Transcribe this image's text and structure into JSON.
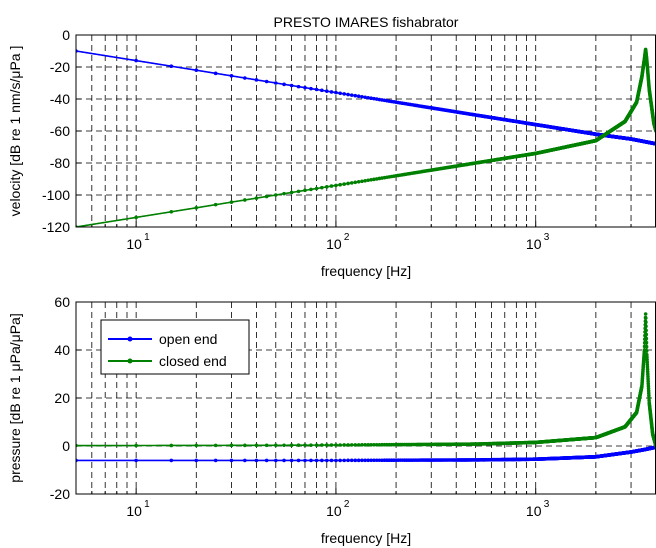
{
  "figure_title": "PRESTO IMARES fishabrator",
  "chart_data": [
    {
      "type": "line",
      "title": "PRESTO IMARES fishabrator",
      "xlabel": "frequency  [Hz]",
      "ylabel": "velocity [dB re 1 nm/s/μPa ]",
      "xscale": "log",
      "xlim": [
        5,
        4000
      ],
      "ylim": [
        -120,
        0
      ],
      "yticks": [
        0,
        -20,
        -40,
        -60,
        -80,
        -100,
        -120
      ],
      "xticks": [
        10,
        100,
        1000
      ],
      "grid": true,
      "series": [
        {
          "key": "open",
          "color": "#0000ff",
          "x": [
            5,
            10,
            20,
            50,
            100,
            200,
            500,
            1000,
            2000,
            3000,
            4000
          ],
          "y": [
            -10,
            -16,
            -22,
            -30,
            -36,
            -42,
            -50,
            -56,
            -62,
            -65,
            -68
          ]
        },
        {
          "key": "closed",
          "color": "#008000",
          "x": [
            5,
            10,
            20,
            50,
            100,
            200,
            500,
            1000,
            2000,
            2800,
            3200,
            3400,
            3500,
            3550,
            3600,
            3700,
            3900,
            4000
          ],
          "y": [
            -120,
            -114,
            -108,
            -100,
            -94,
            -88,
            -80,
            -74,
            -66,
            -54,
            -42,
            -26,
            -15,
            -9,
            -16,
            -34,
            -55,
            -60
          ]
        }
      ]
    },
    {
      "type": "line",
      "xlabel": "frequency  [Hz]",
      "ylabel": "pressure  [dB re 1 μPa/μPa]",
      "xscale": "log",
      "xlim": [
        5,
        4000
      ],
      "ylim": [
        -20,
        60
      ],
      "yticks": [
        60,
        40,
        20,
        0,
        -20
      ],
      "xticks": [
        10,
        100,
        1000
      ],
      "grid": true,
      "legend": {
        "position": "top-left",
        "entries": [
          "open end",
          "closed end"
        ]
      },
      "series": [
        {
          "name": "open end",
          "color": "#0000ff",
          "x": [
            5,
            10,
            50,
            100,
            500,
            1000,
            2000,
            3000,
            3500,
            4000
          ],
          "y": [
            -6,
            -6,
            -6,
            -6,
            -5.8,
            -5.5,
            -4.5,
            -2.5,
            -1.5,
            -0.5
          ]
        },
        {
          "name": "closed end",
          "color": "#008000",
          "x": [
            5,
            10,
            50,
            100,
            500,
            1000,
            2000,
            2800,
            3200,
            3400,
            3500,
            3550,
            3600,
            3700,
            3850,
            4000
          ],
          "y": [
            0.2,
            0.2,
            0.3,
            0.4,
            0.8,
            1.5,
            3.5,
            8,
            14,
            25,
            40,
            55,
            38,
            18,
            5,
            0
          ]
        }
      ]
    }
  ]
}
